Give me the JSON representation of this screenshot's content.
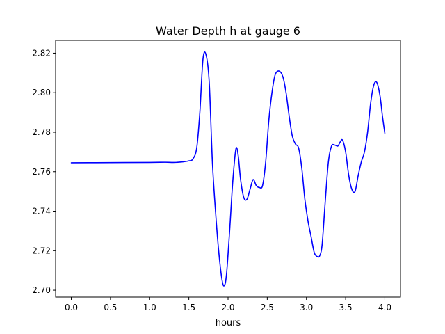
{
  "chart_data": {
    "type": "line",
    "title": "Water Depth h at gauge 6",
    "xlabel": "hours",
    "ylabel": "",
    "xlim": [
      -0.2,
      4.2
    ],
    "ylim": [
      2.6965,
      2.8265
    ],
    "xticks": [
      0.0,
      0.5,
      1.0,
      1.5,
      2.0,
      2.5,
      3.0,
      3.5,
      4.0
    ],
    "xtick_labels": [
      "0.0",
      "0.5",
      "1.0",
      "1.5",
      "2.0",
      "2.5",
      "3.0",
      "3.5",
      "4.0"
    ],
    "yticks": [
      2.7,
      2.72,
      2.74,
      2.76,
      2.78,
      2.8,
      2.82
    ],
    "ytick_labels": [
      "2.70",
      "2.72",
      "2.74",
      "2.76",
      "2.78",
      "2.80",
      "2.82"
    ],
    "grid": false,
    "series": [
      {
        "color": "#0000ff",
        "x": [
          0.0,
          0.5,
          1.0,
          1.2,
          1.3,
          1.4,
          1.5,
          1.55,
          1.6,
          1.64,
          1.68,
          1.72,
          1.76,
          1.8,
          1.84,
          1.88,
          1.92,
          1.95,
          1.98,
          2.02,
          2.06,
          2.1,
          2.13,
          2.16,
          2.2,
          2.24,
          2.28,
          2.32,
          2.36,
          2.4,
          2.44,
          2.48,
          2.52,
          2.56,
          2.6,
          2.65,
          2.7,
          2.74,
          2.78,
          2.82,
          2.86,
          2.9,
          2.94,
          2.98,
          3.02,
          3.06,
          3.1,
          3.14,
          3.17,
          3.2,
          3.24,
          3.28,
          3.32,
          3.36,
          3.4,
          3.43,
          3.46,
          3.5,
          3.54,
          3.58,
          3.62,
          3.66,
          3.7,
          3.74,
          3.78,
          3.82,
          3.86,
          3.9,
          3.94,
          3.97,
          4.0
        ],
        "y": [
          2.7645,
          2.7646,
          2.7647,
          2.7648,
          2.7647,
          2.7649,
          2.7655,
          2.7664,
          2.772,
          2.79,
          2.817,
          2.819,
          2.805,
          2.765,
          2.74,
          2.72,
          2.706,
          2.7022,
          2.708,
          2.73,
          2.755,
          2.7715,
          2.768,
          2.756,
          2.747,
          2.746,
          2.751,
          2.756,
          2.753,
          2.752,
          2.753,
          2.765,
          2.786,
          2.8,
          2.809,
          2.811,
          2.808,
          2.8,
          2.788,
          2.778,
          2.774,
          2.772,
          2.762,
          2.746,
          2.735,
          2.727,
          2.719,
          2.717,
          2.7175,
          2.723,
          2.745,
          2.765,
          2.773,
          2.7735,
          2.773,
          2.775,
          2.776,
          2.77,
          2.758,
          2.751,
          2.75,
          2.758,
          2.765,
          2.77,
          2.78,
          2.795,
          2.804,
          2.805,
          2.798,
          2.788,
          2.7795
        ]
      }
    ]
  }
}
